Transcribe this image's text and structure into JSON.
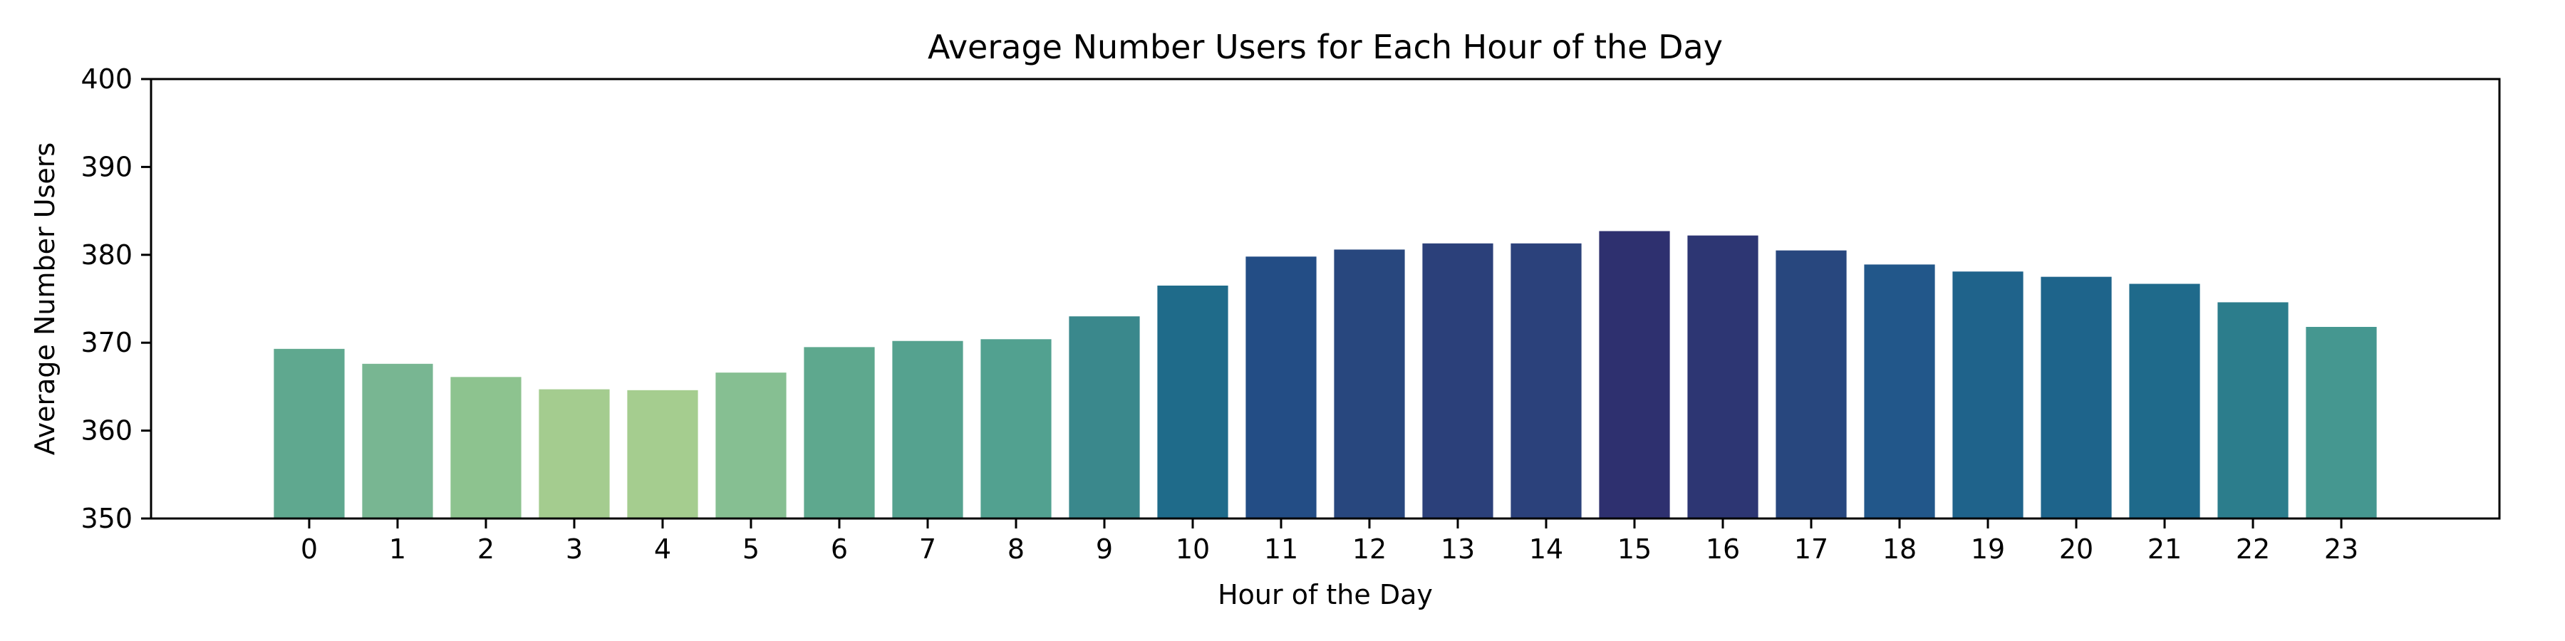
{
  "chart_data": {
    "type": "bar",
    "title": "Average Number Users for Each Hour of the Day",
    "xlabel": "Hour of the Day",
    "ylabel": "Average Number Users",
    "categories": [
      "0",
      "1",
      "2",
      "3",
      "4",
      "5",
      "6",
      "7",
      "8",
      "9",
      "10",
      "11",
      "12",
      "13",
      "14",
      "15",
      "16",
      "17",
      "18",
      "19",
      "20",
      "21",
      "22",
      "23"
    ],
    "values": [
      369.3,
      367.6,
      366.1,
      364.7,
      364.6,
      366.6,
      369.5,
      370.2,
      370.4,
      373.0,
      376.5,
      379.8,
      380.6,
      381.3,
      381.3,
      382.7,
      382.2,
      380.5,
      378.9,
      378.1,
      377.5,
      376.7,
      374.6,
      371.8
    ],
    "colors": [
      "#5fa88f",
      "#78b692",
      "#8dc38f",
      "#a4cc8f",
      "#a5cd8f",
      "#86bf92",
      "#5ea88e",
      "#55a28f",
      "#52a190",
      "#3a888c",
      "#1f6b8a",
      "#234d85",
      "#28477e",
      "#2b407a",
      "#2b417b",
      "#2e306f",
      "#2d3673",
      "#28477e",
      "#22578a",
      "#1f638b",
      "#1e648b",
      "#1f6a8b",
      "#2c7d8c",
      "#459790"
    ],
    "ylim": [
      350,
      400
    ],
    "yticks": [
      350,
      360,
      370,
      380,
      390,
      400
    ],
    "grid": false,
    "legend": "none"
  }
}
